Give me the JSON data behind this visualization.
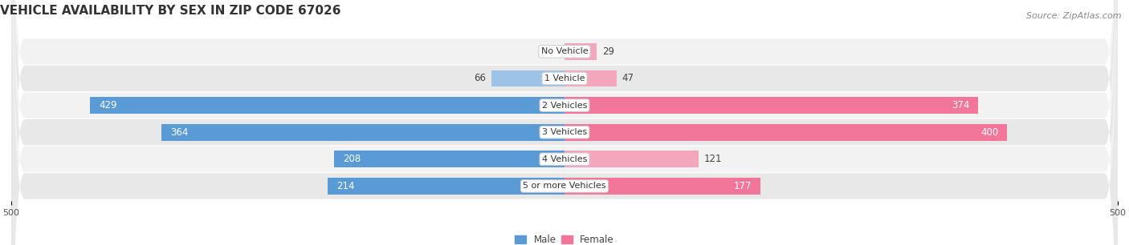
{
  "title": "VEHICLE AVAILABILITY BY SEX IN ZIP CODE 67026",
  "source_text": "Source: ZipAtlas.com",
  "categories": [
    "No Vehicle",
    "1 Vehicle",
    "2 Vehicles",
    "3 Vehicles",
    "4 Vehicles",
    "5 or more Vehicles"
  ],
  "male_values": [
    0,
    66,
    429,
    364,
    208,
    214
  ],
  "female_values": [
    29,
    47,
    374,
    400,
    121,
    177
  ],
  "male_color_large": "#5b9bd5",
  "male_color_small": "#9dc3e6",
  "female_color_large": "#f1769a",
  "female_color_small": "#f4a7bc",
  "row_color_odd": "#f2f2f2",
  "row_color_even": "#e8e8e8",
  "axis_limit": 500,
  "title_fontsize": 11,
  "source_fontsize": 8,
  "value_fontsize": 8.5,
  "category_fontsize": 8,
  "tick_fontsize": 8,
  "large_threshold": 150,
  "legend_male_label": "Male",
  "legend_female_label": "Female",
  "bg_color": "#ffffff"
}
